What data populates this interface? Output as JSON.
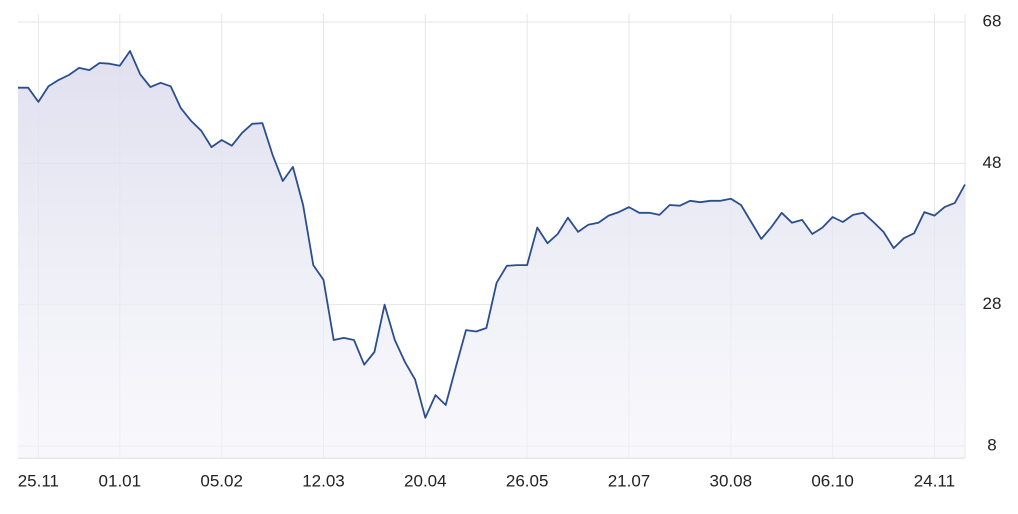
{
  "chart_data": {
    "type": "line",
    "categories": [
      null,
      null,
      "25.11",
      null,
      null,
      null,
      null,
      null,
      null,
      null,
      "01.01",
      null,
      null,
      null,
      null,
      null,
      null,
      null,
      null,
      null,
      "05.02",
      null,
      null,
      null,
      null,
      null,
      null,
      null,
      null,
      null,
      "12.03",
      null,
      null,
      null,
      null,
      null,
      null,
      null,
      null,
      null,
      "20.04",
      null,
      null,
      null,
      null,
      null,
      null,
      null,
      null,
      null,
      "26.05",
      null,
      null,
      null,
      null,
      null,
      null,
      null,
      null,
      null,
      "21.07",
      null,
      null,
      null,
      null,
      null,
      null,
      null,
      null,
      null,
      "30.08",
      null,
      null,
      null,
      null,
      null,
      null,
      null,
      null,
      null,
      "06.10",
      null,
      null,
      null,
      null,
      null,
      null,
      null,
      null,
      null,
      "24.11",
      null,
      null,
      null
    ],
    "values": [
      58.7,
      58.7,
      56.7,
      58.9,
      59.8,
      60.5,
      61.5,
      61.2,
      62.2,
      62.1,
      61.8,
      63.9,
      60.6,
      58.8,
      59.4,
      58.9,
      55.8,
      54.0,
      52.6,
      50.3,
      51.3,
      50.5,
      52.3,
      53.6,
      53.7,
      49.2,
      45.5,
      47.5,
      42.1,
      33.6,
      31.5,
      23.0,
      23.3,
      23.0,
      19.5,
      21.3,
      28.0,
      23.0,
      19.9,
      17.4,
      12.0,
      15.2,
      13.8,
      19.2,
      24.4,
      24.2,
      24.7,
      31.1,
      33.5,
      33.6,
      33.6,
      38.9,
      36.7,
      38.0,
      40.3,
      38.3,
      39.3,
      39.6,
      40.6,
      41.1,
      41.8,
      41.0,
      41.0,
      40.7,
      42.1,
      42.0,
      42.7,
      42.5,
      42.7,
      42.7,
      43.0,
      42.1,
      39.7,
      37.3,
      39.0,
      41.0,
      39.6,
      40.0,
      38.0,
      38.9,
      40.4,
      39.7,
      40.7,
      41.0,
      39.7,
      38.3,
      36.0,
      37.4,
      38.1,
      41.1,
      40.6,
      41.8,
      42.4,
      45.0
    ],
    "color": "#2b4f8e",
    "ylim": [
      8,
      68
    ],
    "yticks": [
      8,
      28,
      48,
      68
    ],
    "grid": true
  }
}
